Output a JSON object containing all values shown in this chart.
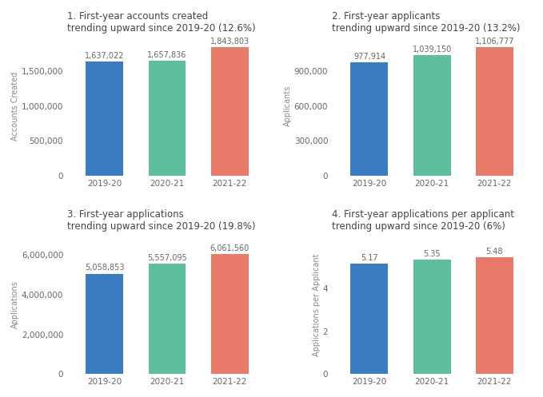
{
  "charts": [
    {
      "title": "1. First-year accounts created\ntrending upward since 2019-20 (12.6%)",
      "ylabel": "Accounts Created",
      "categories": [
        "2019-20",
        "2020-21",
        "2021-22"
      ],
      "values": [
        1637022,
        1657836,
        1843803
      ],
      "colors": [
        "#3a7cc1",
        "#5dbfa0",
        "#e87a6a"
      ],
      "ylim": [
        0,
        2000000
      ],
      "yticks": [
        0,
        500000,
        1000000,
        1500000
      ],
      "value_labels": [
        "1,637,022",
        "1,657,836",
        "1,843,803"
      ],
      "is_large": true
    },
    {
      "title": "2. First-year applicants\ntrending upward since 2019-20 (13.2%)",
      "ylabel": "Applicants",
      "categories": [
        "2019-20",
        "2020-21",
        "2021-22"
      ],
      "values": [
        977914,
        1039150,
        1106777
      ],
      "colors": [
        "#3a7cc1",
        "#5dbfa0",
        "#e87a6a"
      ],
      "ylim": [
        0,
        1200000
      ],
      "yticks": [
        0,
        300000,
        600000,
        900000
      ],
      "value_labels": [
        "977,914",
        "1,039,150",
        "1,106,777"
      ],
      "is_large": true
    },
    {
      "title": "3. First-year applications\ntrending upward since 2019-20 (19.8%)",
      "ylabel": "Applications",
      "categories": [
        "2019-20",
        "2020-21",
        "2021-22"
      ],
      "values": [
        5058853,
        5557095,
        6061560
      ],
      "colors": [
        "#3a7cc1",
        "#5dbfa0",
        "#e87a6a"
      ],
      "ylim": [
        0,
        7000000
      ],
      "yticks": [
        0,
        2000000,
        4000000,
        6000000
      ],
      "value_labels": [
        "5,058,853",
        "5,557,095",
        "6,061,560"
      ],
      "is_large": true
    },
    {
      "title": "4. First-year applications per applicant\ntrending upward since 2019-20 (6%)",
      "ylabel": "Applications per Applicant",
      "categories": [
        "2019-20",
        "2020-21",
        "2021-22"
      ],
      "values": [
        5.17,
        5.35,
        5.48
      ],
      "colors": [
        "#3a7cc1",
        "#5dbfa0",
        "#e87a6a"
      ],
      "ylim": [
        0,
        6.5
      ],
      "yticks": [
        0,
        2,
        4
      ],
      "value_labels": [
        "5.17",
        "5.35",
        "5.48"
      ],
      "is_large": false
    }
  ],
  "background_color": "#ffffff",
  "bar_width": 0.6,
  "title_fontsize": 8.5,
  "label_fontsize": 7,
  "tick_fontsize": 7.5,
  "value_fontsize": 7
}
